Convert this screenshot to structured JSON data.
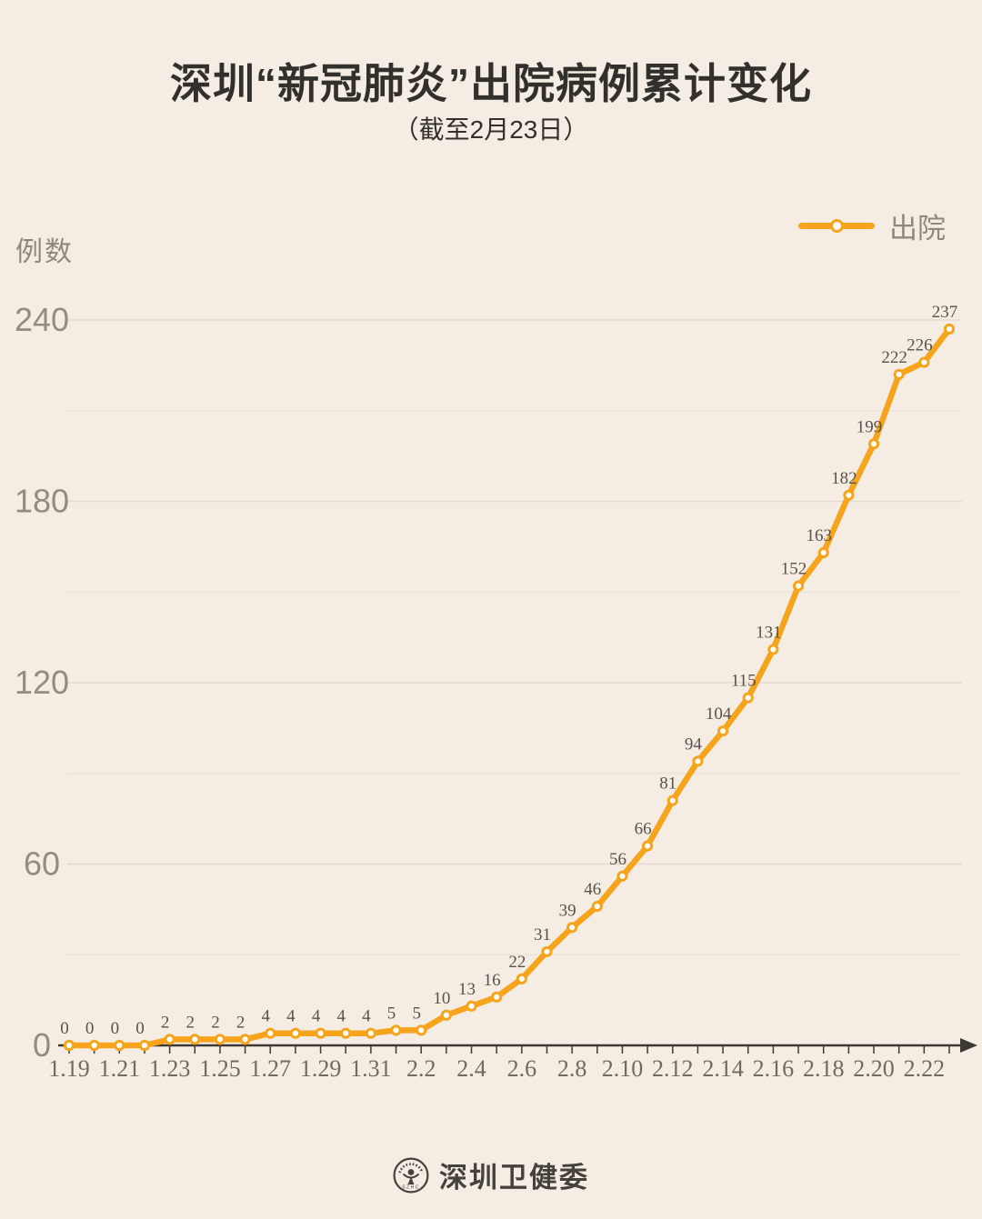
{
  "page": {
    "title": "深圳“新冠肺炎”出院病例累计变化",
    "subtitle": "（截至2月23日）",
    "y_axis_title": "例数",
    "footer_brand": "深圳卫健委",
    "logo_text": "SZHC"
  },
  "legend": {
    "label": "出院",
    "position": "top-right"
  },
  "colors": {
    "background": "#F5EDE3",
    "line": "#F7A41D",
    "marker_fill": "#FFFEF9",
    "axis": "#3C3933",
    "grid_major": "#E4DACC",
    "grid_minor": "#EAE1D5",
    "x_tick_label": "#6F6A62",
    "y_tick_label": "#928C82",
    "data_label": "#57524B",
    "title": "#32302C",
    "footer": "#45413B"
  },
  "chart_data": {
    "type": "line",
    "title": "深圳“新冠肺炎”出院病例累计变化",
    "subtitle": "（截至2月23日）",
    "ylabel": "例数",
    "xlabel": "",
    "legend": [
      "出院"
    ],
    "legend_position": "top-right",
    "grid": true,
    "ylim": [
      0,
      240
    ],
    "y_major_ticks": [
      0,
      60,
      120,
      180,
      240
    ],
    "y_minor_gridlines": [
      30,
      90,
      150,
      210
    ],
    "x_label_every": 2,
    "categories": [
      "1.19",
      "1.20",
      "1.21",
      "1.22",
      "1.23",
      "1.24",
      "1.25",
      "1.26",
      "1.27",
      "1.28",
      "1.29",
      "1.30",
      "1.31",
      "2.1",
      "2.2",
      "2.3",
      "2.4",
      "2.5",
      "2.6",
      "2.7",
      "2.8",
      "2.9",
      "2.10",
      "2.11",
      "2.12",
      "2.13",
      "2.14",
      "2.15",
      "2.16",
      "2.17",
      "2.18",
      "2.19",
      "2.20",
      "2.21",
      "2.22",
      "2.23"
    ],
    "series": [
      {
        "name": "出院",
        "values": [
          0,
          0,
          0,
          0,
          2,
          2,
          2,
          2,
          4,
          4,
          4,
          4,
          4,
          5,
          5,
          10,
          13,
          16,
          22,
          31,
          39,
          46,
          56,
          66,
          81,
          94,
          104,
          115,
          131,
          152,
          163,
          182,
          199,
          222,
          226,
          237
        ]
      }
    ]
  }
}
